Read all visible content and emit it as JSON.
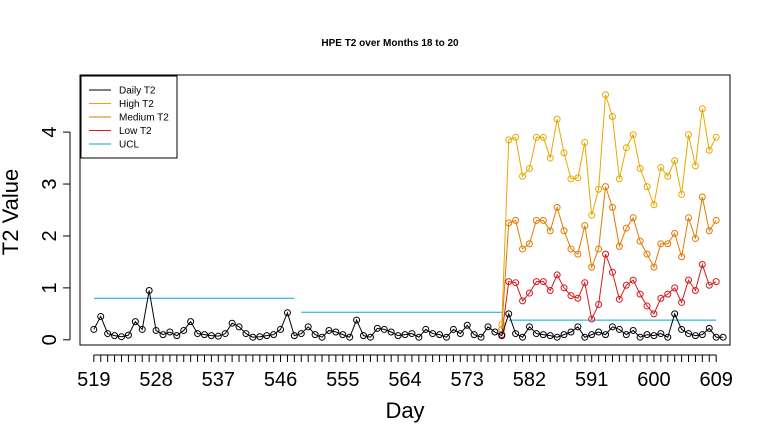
{
  "chart_data": {
    "type": "line",
    "title": "HPE T2 over Months 18 to 20",
    "xlabel": "Day",
    "ylabel": "T2 Value",
    "xlim": [
      517,
      611
    ],
    "ylim": [
      -0.1,
      5.1
    ],
    "x_ticks": [
      519,
      528,
      537,
      546,
      555,
      564,
      573,
      582,
      591,
      600,
      609
    ],
    "y_ticks": [
      0,
      1,
      2,
      3,
      4
    ],
    "grid": false,
    "legend_position": "top-left",
    "series": [
      {
        "name": "Daily T2",
        "color": "#000000",
        "x_start": 519,
        "values": [
          0.2,
          0.45,
          0.12,
          0.08,
          0.06,
          0.09,
          0.35,
          0.2,
          0.95,
          0.18,
          0.1,
          0.15,
          0.08,
          0.18,
          0.35,
          0.12,
          0.1,
          0.08,
          0.07,
          0.12,
          0.32,
          0.25,
          0.12,
          0.05,
          0.06,
          0.08,
          0.1,
          0.2,
          0.52,
          0.08,
          0.12,
          0.25,
          0.1,
          0.05,
          0.18,
          0.15,
          0.1,
          0.05,
          0.38,
          0.08,
          0.05,
          0.22,
          0.2,
          0.15,
          0.08,
          0.1,
          0.12,
          0.05,
          0.2,
          0.12,
          0.1,
          0.05,
          0.2,
          0.12,
          0.28,
          0.1,
          0.05,
          0.25,
          0.15,
          0.08,
          0.5,
          0.12,
          0.05,
          0.25,
          0.12,
          0.1,
          0.08,
          0.05,
          0.1,
          0.15,
          0.25,
          0.05,
          0.1,
          0.15,
          0.1,
          0.25,
          0.2,
          0.1,
          0.18,
          0.05,
          0.1,
          0.08,
          0.12,
          0.05,
          0.5,
          0.2,
          0.12,
          0.08,
          0.1,
          0.22,
          0.05,
          0.05
        ]
      },
      {
        "name": "High T2",
        "color": "#E6A800",
        "x_start": 578,
        "values": [
          0.3,
          3.85,
          3.9,
          3.15,
          3.3,
          3.9,
          3.9,
          3.5,
          4.25,
          3.6,
          3.1,
          3.12,
          3.8,
          2.4,
          2.9,
          4.72,
          4.3,
          3.1,
          3.7,
          3.95,
          3.3,
          2.95,
          2.6,
          3.32,
          3.15,
          3.45,
          2.8,
          3.95,
          3.35,
          4.45,
          3.65,
          3.9
        ]
      },
      {
        "name": "Medium T2",
        "color": "#E07B00",
        "x_start": 578,
        "values": [
          0.2,
          2.25,
          2.3,
          1.75,
          1.85,
          2.3,
          2.3,
          2.1,
          2.55,
          2.1,
          1.75,
          1.65,
          2.2,
          1.4,
          1.75,
          2.95,
          2.55,
          1.8,
          2.15,
          2.35,
          1.9,
          1.65,
          1.4,
          1.85,
          1.85,
          2.05,
          1.6,
          2.35,
          1.95,
          2.75,
          2.1,
          2.3
        ]
      },
      {
        "name": "Low T2",
        "color": "#D7191C",
        "x_start": 578,
        "values": [
          0.1,
          1.12,
          1.1,
          0.75,
          0.9,
          1.12,
          1.12,
          0.95,
          1.25,
          1.0,
          0.85,
          0.8,
          1.1,
          0.4,
          0.68,
          1.65,
          1.3,
          0.78,
          1.05,
          1.15,
          0.88,
          0.65,
          0.5,
          0.8,
          0.88,
          1.0,
          0.72,
          1.15,
          0.95,
          1.45,
          1.05,
          1.12
        ]
      },
      {
        "name": "UCL",
        "color": "#00AAD4",
        "segments": [
          {
            "x": [
              519,
              548
            ],
            "y": [
              0.8,
              0.8
            ]
          },
          {
            "x": [
              549,
              578
            ],
            "y": [
              0.53,
              0.53
            ]
          },
          {
            "x": [
              579,
              609
            ],
            "y": [
              0.38,
              0.38
            ]
          }
        ]
      }
    ]
  }
}
